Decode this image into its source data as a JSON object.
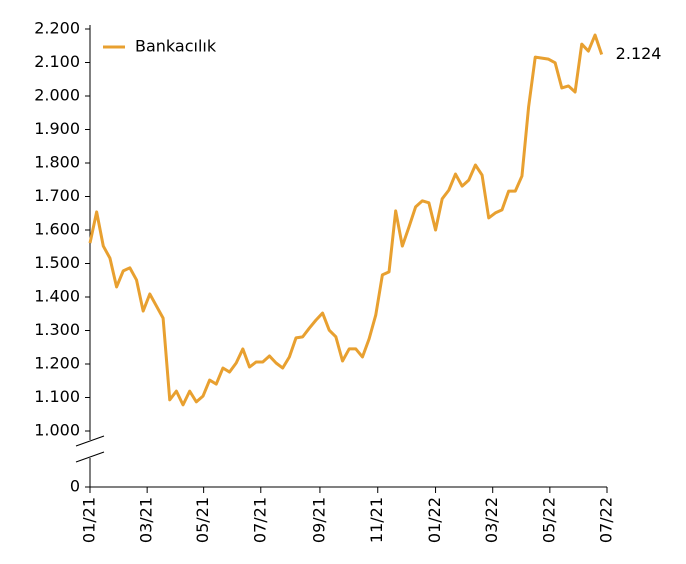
{
  "chart_data": {
    "type": "line",
    "x": [
      0,
      1,
      2,
      3,
      4,
      5,
      6,
      7,
      8,
      9,
      10,
      11,
      12,
      13,
      14,
      15,
      16,
      17,
      18,
      19,
      20,
      21,
      22,
      23,
      24,
      25,
      26,
      27,
      28,
      29,
      30,
      31,
      32,
      33,
      34,
      35,
      36,
      37,
      38,
      39,
      40,
      41,
      42,
      43,
      44,
      45,
      46,
      47,
      48,
      49,
      50,
      51,
      52,
      53,
      54,
      55,
      56,
      57,
      58,
      59,
      60,
      61,
      62,
      63,
      64,
      65,
      66,
      67,
      68,
      69,
      70,
      71,
      72,
      73,
      74,
      75,
      76,
      77
    ],
    "series": [
      {
        "name": "Bankacılık",
        "color": "#e8a030",
        "values": [
          1561,
          1654,
          1552,
          1516,
          1430,
          1478,
          1487,
          1451,
          1358,
          1409,
          1373,
          1337,
          1093,
          1119,
          1078,
          1119,
          1087,
          1104,
          1152,
          1140,
          1188,
          1176,
          1203,
          1245,
          1191,
          1206,
          1206,
          1224,
          1203,
          1188,
          1221,
          1278,
          1281,
          1307,
          1331,
          1352,
          1301,
          1281,
          1209,
          1245,
          1245,
          1221,
          1275,
          1346,
          1466,
          1475,
          1657,
          1552,
          1609,
          1669,
          1687,
          1681,
          1600,
          1693,
          1719,
          1767,
          1731,
          1749,
          1794,
          1764,
          1636,
          1651,
          1660,
          1716,
          1716,
          1761,
          1967,
          2116,
          2113,
          2110,
          2099,
          2024,
          2030,
          2012,
          2155,
          2134,
          2182,
          2124
        ],
        "value_labels": [
          null,
          null,
          null,
          null,
          null,
          null,
          null,
          null,
          null,
          null,
          null,
          null,
          null,
          null,
          null,
          null,
          null,
          null,
          null,
          null,
          null,
          null,
          null,
          null,
          null,
          null,
          null,
          null,
          null,
          null,
          null,
          null,
          null,
          null,
          null,
          null,
          null,
          null,
          null,
          null,
          null,
          null,
          null,
          null,
          null,
          null,
          null,
          null,
          null,
          null,
          null,
          null,
          null,
          null,
          null,
          null,
          null,
          null,
          null,
          null,
          null,
          null,
          null,
          null,
          null,
          null,
          null,
          null,
          null,
          null,
          null,
          null,
          null,
          null,
          null,
          null,
          null,
          "2.124"
        ]
      }
    ],
    "xlim": [
      0,
      77.8
    ],
    "xticks": [
      {
        "value": 0,
        "label": "01/21"
      },
      {
        "value": 8.6,
        "label": "03/21"
      },
      {
        "value": 17.1,
        "label": "05/21"
      },
      {
        "value": 25.7,
        "label": "07/21"
      },
      {
        "value": 34.6,
        "label": "09/21"
      },
      {
        "value": 43.3,
        "label": "11/21"
      },
      {
        "value": 52.0,
        "label": "01/22"
      },
      {
        "value": 60.6,
        "label": "03/22"
      },
      {
        "value": 69.2,
        "label": "05/22"
      },
      {
        "value": 77.8,
        "label": "07/22"
      }
    ],
    "ylim": [
      1000,
      2200
    ],
    "yticks": [
      {
        "value": 1000,
        "label": "1.000"
      },
      {
        "value": 1100,
        "label": "1.100"
      },
      {
        "value": 1200,
        "label": "1.200"
      },
      {
        "value": 1300,
        "label": "1.300"
      },
      {
        "value": 1400,
        "label": "1.400"
      },
      {
        "value": 1500,
        "label": "1.500"
      },
      {
        "value": 1600,
        "label": "1.600"
      },
      {
        "value": 1700,
        "label": "1.700"
      },
      {
        "value": 1800,
        "label": "1.800"
      },
      {
        "value": 1900,
        "label": "1.900"
      },
      {
        "value": 2000,
        "label": "2.000"
      },
      {
        "value": 2100,
        "label": "2.100"
      },
      {
        "value": 2200,
        "label": "2.200"
      },
      0
    ],
    "axis_break": true,
    "legend": "top-left"
  }
}
